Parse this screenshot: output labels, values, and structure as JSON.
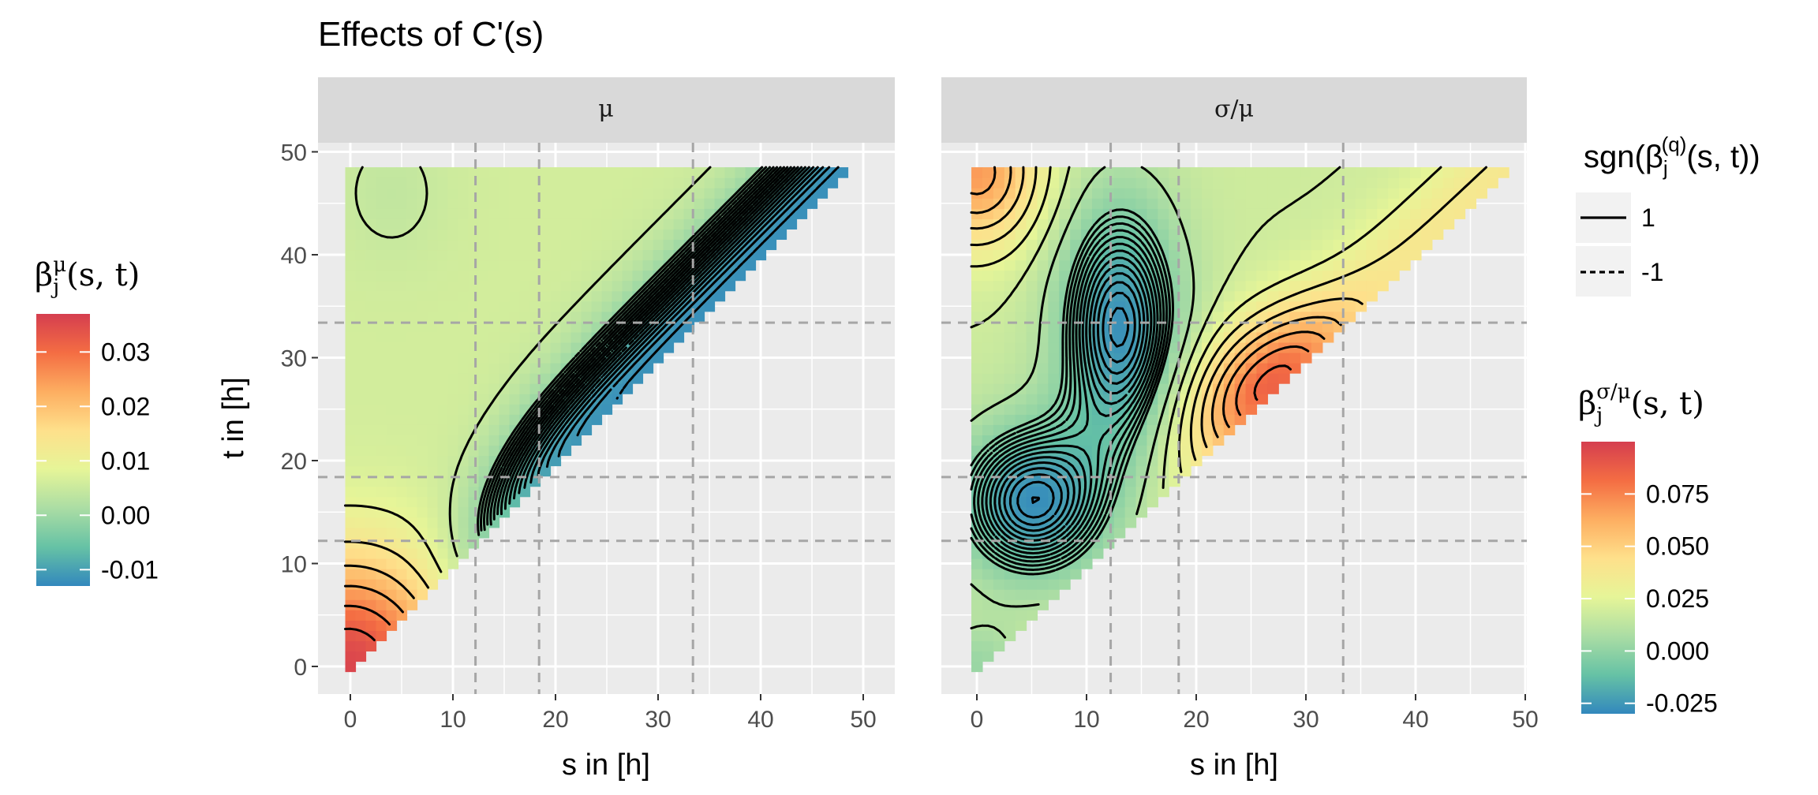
{
  "chart_data": {
    "type": "heatmap",
    "title": "Effects of C'(s)",
    "xlabel": "s in [h]",
    "ylabel": "t in [h]",
    "xlim": [
      -3,
      50
    ],
    "ylim": [
      -3,
      50
    ],
    "x_ticks": [
      0,
      10,
      20,
      30,
      40,
      50
    ],
    "y_ticks": [
      0,
      10,
      20,
      30,
      40,
      50
    ],
    "reference_lines": {
      "vertical_s": [
        12.2,
        18.4,
        33.4
      ],
      "horizontal_t": [
        12.2,
        18.4,
        33.4
      ]
    },
    "panels": [
      {
        "strip": "μ",
        "legend_title": "β_j^μ(s, t)",
        "colorbar_range": [
          -0.013,
          0.037
        ],
        "colorbar_ticks": [
          0.03,
          0.02,
          0.01,
          0.0,
          -0.01
        ],
        "colorbar_labels": [
          "0.03",
          "0.02",
          "0.01",
          "0.00",
          "-0.01"
        ],
        "surface_description": "maximum (~0.035) near s=0,t=0; ~0.005 across mid-region; minimum (~-0.012) along diagonal t=s for s>20",
        "contour_levels_dashed": 20,
        "contour_levels_solid": 7
      },
      {
        "strip": "σ/μ",
        "legend_title": "β_j^{σ/μ}(s, t)",
        "colorbar_range": [
          -0.03,
          0.1
        ],
        "colorbar_ticks": [
          0.075,
          0.05,
          0.025,
          0.0,
          -0.025
        ],
        "colorbar_labels": [
          "0.075",
          "0.050",
          "0.025",
          "0.000",
          "-0.025"
        ],
        "surface_description": "minima (~-0.025) near (s=5,t=16) and (s=13,t=33); maximum (~0.095) near diagonal s in 20-30; moderate positive values near top-left corner",
        "contour_levels_dashed": 14,
        "contour_levels_solid": 10
      }
    ],
    "linetype_legend": {
      "title": "sgn(β_j^(q)(s, t))",
      "entries": [
        {
          "label": "1",
          "style": "solid"
        },
        {
          "label": "-1",
          "style": "dashed"
        }
      ]
    }
  },
  "text": {
    "title": "Effects of C'(s)",
    "strip_left": "μ",
    "strip_right": "σ/μ",
    "xlabel": "s in [h]",
    "ylabel": "t in [h]",
    "lt_title_prefix": "sgn(β",
    "lt_title_sub": "j",
    "lt_title_sup": "(q)",
    "lt_title_suffix": "(s, t))",
    "lt_label_pos": "1",
    "lt_label_neg": "-1",
    "cb1_beta": "β",
    "cb1_sub": "j",
    "cb1_sup": "μ",
    "cb1_suffix": "(s, t)",
    "cb2_beta": "β",
    "cb2_sub": "j",
    "cb2_sup": "σ/μ",
    "cb2_suffix": "(s, t)"
  },
  "colors": {
    "panel_bg": "#ebebeb",
    "strip_bg": "#d9d9d9",
    "grid": "#ffffff",
    "ref_line": "#a6a6a6",
    "axis_text": "#4d4d4d",
    "spectral": [
      "#3288bd",
      "#66c2a5",
      "#abdda4",
      "#e6f598",
      "#fee08b",
      "#fdae61",
      "#f46d43",
      "#d53e4f"
    ]
  }
}
